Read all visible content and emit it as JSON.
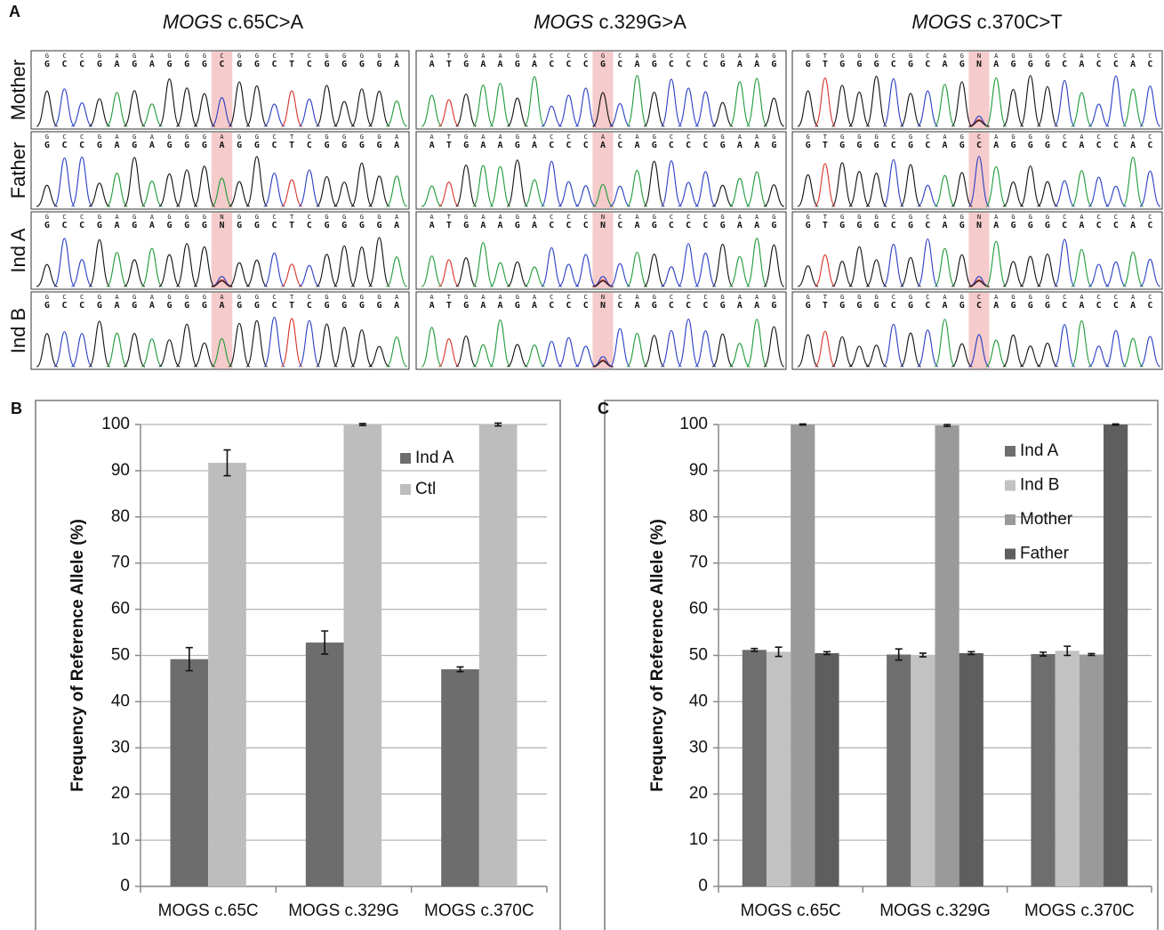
{
  "panel_a": {
    "label": "A",
    "row_labels": [
      "Mother",
      "Father",
      "Ind A",
      "Ind B"
    ],
    "columns": [
      {
        "gene": "MOGS",
        "variant": "c.65C>A",
        "rows": [
          {
            "bases": [
              "G",
              "C",
              "C",
              "G",
              "A",
              "G",
              "A",
              "G",
              "G",
              "G",
              "C",
              "G",
              "G",
              "C",
              "T",
              "C",
              "G",
              "G",
              "G",
              "G",
              "A"
            ]
          },
          {
            "bases": [
              "G",
              "C",
              "C",
              "G",
              "A",
              "G",
              "A",
              "G",
              "G",
              "G",
              "A",
              "G",
              "G",
              "C",
              "T",
              "C",
              "G",
              "G",
              "G",
              "G",
              "A"
            ]
          },
          {
            "bases": [
              "G",
              "C",
              "C",
              "G",
              "A",
              "G",
              "A",
              "G",
              "G",
              "G",
              "N",
              "G",
              "G",
              "C",
              "T",
              "C",
              "G",
              "G",
              "G",
              "G",
              "A"
            ]
          },
          {
            "bases": [
              "G",
              "C",
              "C",
              "G",
              "A",
              "G",
              "A",
              "G",
              "G",
              "G",
              "A",
              "G",
              "G",
              "C",
              "T",
              "C",
              "G",
              "G",
              "G",
              "G",
              "A"
            ]
          }
        ]
      },
      {
        "gene": "MOGS",
        "variant": "c.329G>A",
        "rows": [
          {
            "bases": [
              "A",
              "T",
              "G",
              "A",
              "A",
              "G",
              "A",
              "C",
              "C",
              "C",
              "G",
              "C",
              "A",
              "G",
              "C",
              "C",
              "C",
              "G",
              "A",
              "A",
              "G"
            ]
          },
          {
            "bases": [
              "A",
              "T",
              "G",
              "A",
              "A",
              "G",
              "A",
              "C",
              "C",
              "C",
              "A",
              "C",
              "A",
              "G",
              "C",
              "C",
              "C",
              "G",
              "A",
              "A",
              "G"
            ]
          },
          {
            "bases": [
              "A",
              "T",
              "G",
              "A",
              "A",
              "G",
              "A",
              "C",
              "C",
              "C",
              "N",
              "C",
              "A",
              "G",
              "C",
              "C",
              "C",
              "G",
              "A",
              "A",
              "G"
            ]
          },
          {
            "bases": [
              "A",
              "T",
              "G",
              "A",
              "A",
              "G",
              "A",
              "C",
              "C",
              "C",
              "N",
              "C",
              "A",
              "G",
              "C",
              "C",
              "C",
              "G",
              "A",
              "A",
              "G"
            ]
          }
        ]
      },
      {
        "gene": "MOGS",
        "variant": "c.370C>T",
        "rows": [
          {
            "bases": [
              "G",
              "T",
              "G",
              "G",
              "G",
              "C",
              "G",
              "C",
              "A",
              "G",
              "N",
              "A",
              "G",
              "G",
              "G",
              "C",
              "A",
              "C",
              "C",
              "A",
              "C"
            ]
          },
          {
            "bases": [
              "G",
              "T",
              "G",
              "G",
              "G",
              "C",
              "G",
              "C",
              "A",
              "G",
              "C",
              "A",
              "G",
              "G",
              "G",
              "C",
              "A",
              "C",
              "C",
              "A",
              "C"
            ]
          },
          {
            "bases": [
              "G",
              "T",
              "G",
              "G",
              "G",
              "C",
              "G",
              "C",
              "A",
              "G",
              "N",
              "A",
              "G",
              "G",
              "G",
              "C",
              "A",
              "C",
              "C",
              "A",
              "C"
            ]
          },
          {
            "bases": [
              "G",
              "T",
              "G",
              "G",
              "G",
              "C",
              "G",
              "C",
              "A",
              "G",
              "C",
              "A",
              "G",
              "G",
              "G",
              "C",
              "A",
              "C",
              "C",
              "A",
              "C"
            ]
          }
        ]
      }
    ]
  },
  "chart_data": [
    {
      "type": "bar",
      "panel_label": "B",
      "ylabel": "Frequency of Reference Allele (%)",
      "categories": [
        "MOGS c.65C",
        "MOGS c.329G",
        "MOGS c.370C"
      ],
      "series": [
        {
          "name": "Ind A",
          "color": "#6d6d6d",
          "values": [
            49.2,
            52.8,
            47.0
          ],
          "errors": [
            2.5,
            2.5,
            0.5
          ]
        },
        {
          "name": "Ctl",
          "color": "#bdbdbd",
          "values": [
            91.7,
            100,
            100
          ],
          "errors": [
            2.8,
            0.2,
            0.3
          ]
        }
      ],
      "ylim": [
        0,
        100
      ],
      "yticks": [
        0,
        10,
        20,
        30,
        40,
        50,
        60,
        70,
        80,
        90,
        100
      ],
      "grid": true,
      "legend": "upper right"
    },
    {
      "type": "bar",
      "panel_label": "C",
      "ylabel": "Frequency of Reference Allele (%)",
      "categories": [
        "MOGS c.65C",
        "MOGS c.329G",
        "MOGS c.370C"
      ],
      "series": [
        {
          "name": "Ind A",
          "color": "#6e6e6e",
          "values": [
            51.2,
            50.2,
            50.3
          ],
          "errors": [
            0.3,
            1.2,
            0.4
          ]
        },
        {
          "name": "Ind B",
          "color": "#c2c2c2",
          "values": [
            50.8,
            50.1,
            51.0
          ],
          "errors": [
            1.0,
            0.4,
            1.0
          ]
        },
        {
          "name": "Mother",
          "color": "#9a9a9a",
          "values": [
            100,
            99.8,
            50.2
          ],
          "errors": [
            0.1,
            0.2,
            0.2
          ]
        },
        {
          "name": "Father",
          "color": "#5e5e5e",
          "values": [
            50.5,
            50.5,
            100
          ],
          "errors": [
            0.3,
            0.3,
            0.1
          ]
        }
      ],
      "ylim": [
        0,
        100
      ],
      "yticks": [
        0,
        10,
        20,
        30,
        40,
        50,
        60,
        70,
        80,
        90,
        100
      ],
      "grid": true,
      "legend": "upper right"
    }
  ]
}
